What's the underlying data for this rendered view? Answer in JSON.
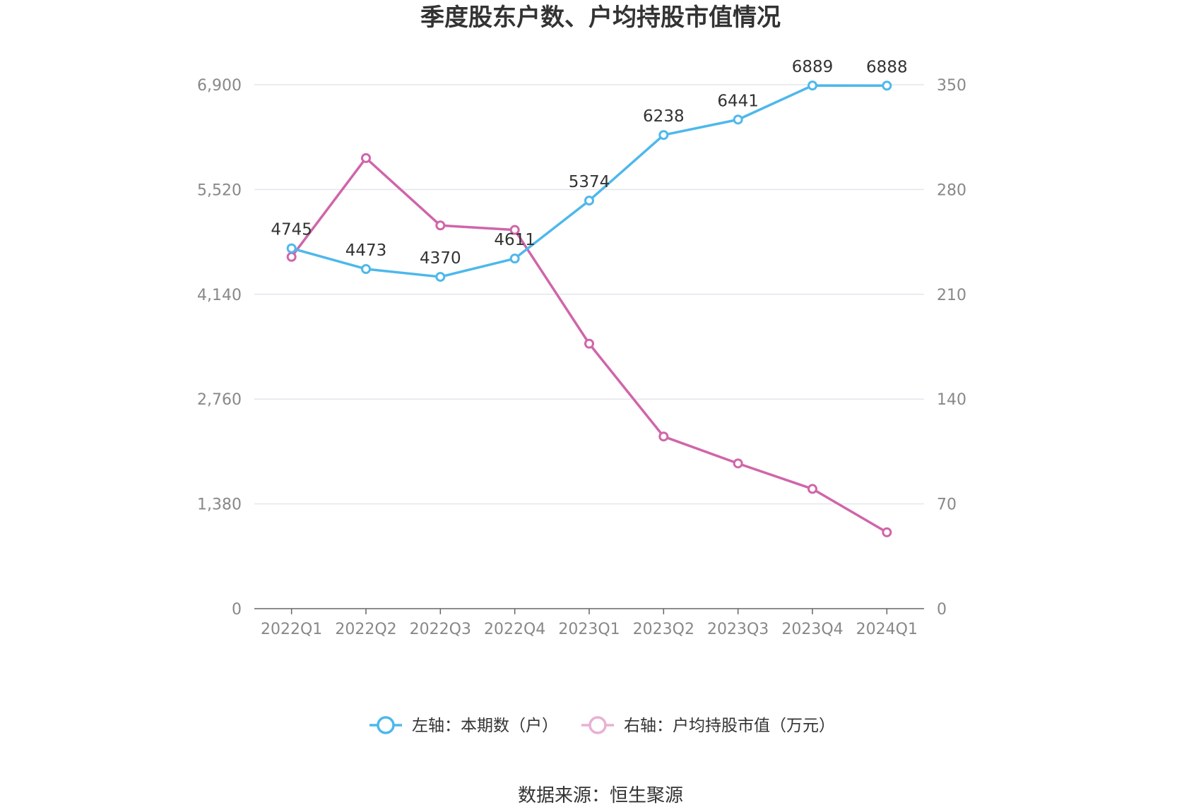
{
  "chart_data": {
    "type": "line",
    "title": "季度股东户数、户均持股市值情况",
    "categories": [
      "2022Q1",
      "2022Q2",
      "2022Q3",
      "2022Q4",
      "2023Q1",
      "2023Q2",
      "2023Q3",
      "2023Q4",
      "2024Q1"
    ],
    "y_left": {
      "ticks": [
        "0",
        "1,380",
        "2,760",
        "4,140",
        "5,520",
        "6,900"
      ],
      "ylim": [
        0,
        6900
      ]
    },
    "y_right": {
      "ticks": [
        "0",
        "70",
        "140",
        "210",
        "280",
        "350"
      ],
      "ylim": [
        0,
        350
      ]
    },
    "grid": true,
    "legend_position": "bottom",
    "series": [
      {
        "name": "左轴：本期数（户）",
        "axis": "left",
        "color": "#4db8ec",
        "values": [
          4745,
          4473,
          4370,
          4611,
          5374,
          6238,
          6441,
          6889,
          6888
        ],
        "labels": [
          "4745",
          "4473",
          "4370",
          "4611",
          "5374",
          "6238",
          "6441",
          "6889",
          "6888"
        ]
      },
      {
        "name": "右轴：户均持股市值（万元）",
        "axis": "right",
        "color": "#d065aa",
        "values": [
          235,
          301,
          256,
          253,
          177,
          115,
          97,
          80,
          51
        ]
      }
    ]
  },
  "source": "数据来源：恒生聚源"
}
